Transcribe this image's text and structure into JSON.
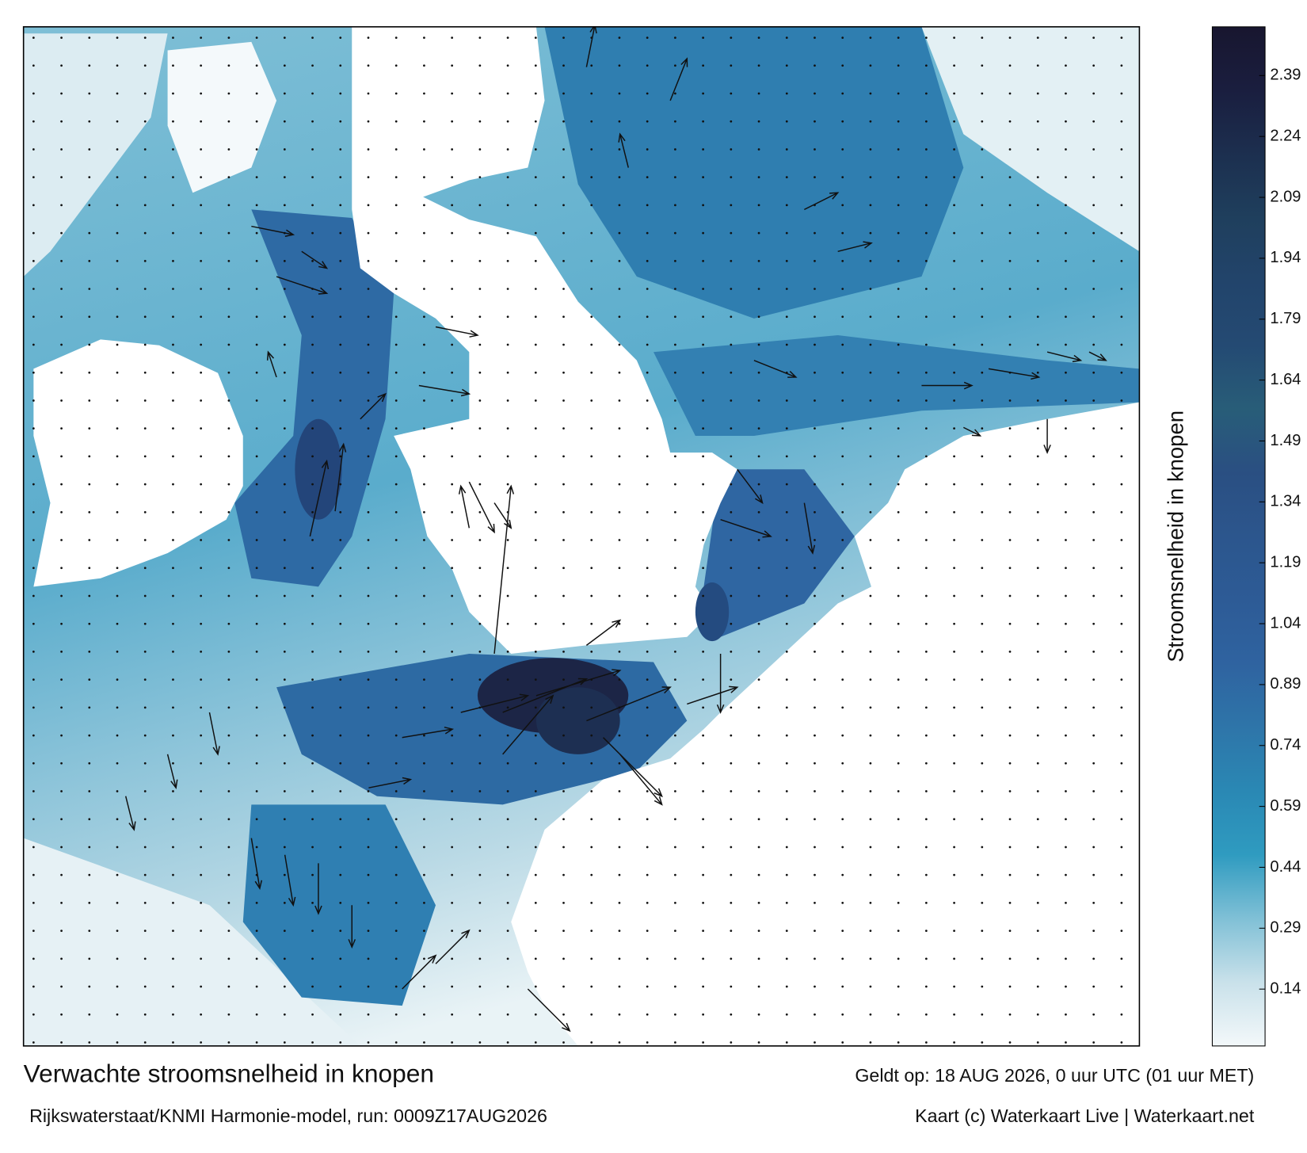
{
  "title": "Verwachte stroomsnelheid in knopen",
  "subtitle": "Rijkswaterstaat/KNMI Harmonie-model, run: 0009Z17AUG2026",
  "valid_time": "Geldt op: 18 AUG 2026, 0 uur UTC (01 uur MET)",
  "credit": "Kaart (c) Waterkaart Live | Waterkaart.net",
  "colorbar": {
    "label": "Stroomsnelheid in knopen",
    "lim": [
      0,
      2.51
    ],
    "ticks": [
      0.14,
      0.29,
      0.44,
      0.59,
      0.74,
      0.89,
      1.04,
      1.19,
      1.34,
      1.49,
      1.64,
      1.79,
      1.94,
      2.09,
      2.24,
      2.39
    ],
    "colors": [
      "#f3f8fa",
      "#c9e1ea",
      "#80c0d6",
      "#2f9bc0",
      "#2a88b4",
      "#2e75a9",
      "#2f63a0",
      "#2d5b96",
      "#2c568d",
      "#2a4f82",
      "#285d78",
      "#244a73",
      "#22446b",
      "#1f3f5d",
      "#1c2f4f",
      "#1a1e3f",
      "#18162f"
    ]
  }
}
